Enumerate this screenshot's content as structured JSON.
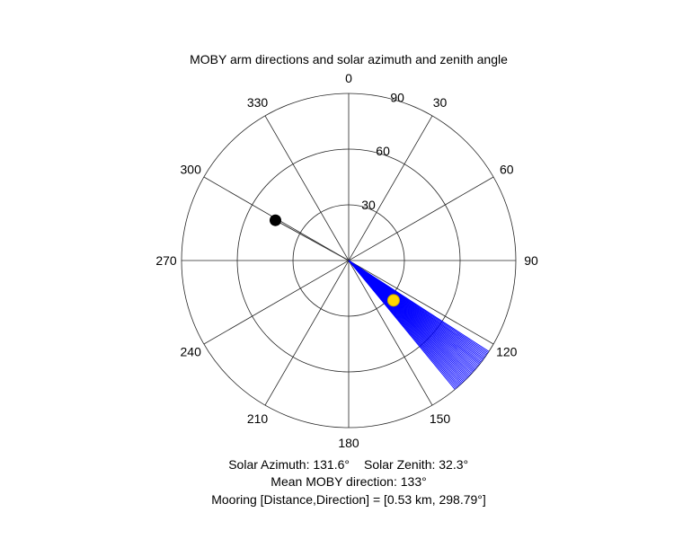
{
  "chart_data": {
    "type": "polar",
    "title": "MOBY arm directions and solar azimuth and zenith angle",
    "theta_zero": "top",
    "theta_direction": "clockwise",
    "theta_ticks": [
      "0",
      "30",
      "60",
      "90",
      "120",
      "150",
      "180",
      "210",
      "240",
      "270",
      "300",
      "330"
    ],
    "r_max": 90,
    "r_ticks": [
      "30",
      "60",
      "90"
    ],
    "arm_directions": [
      [
        123.0,
        90
      ],
      [
        123.5,
        90
      ],
      [
        124.0,
        90
      ],
      [
        124.5,
        90
      ],
      [
        125.0,
        90
      ],
      [
        125.5,
        90
      ],
      [
        126.0,
        90
      ],
      [
        126.5,
        90
      ],
      [
        127.0,
        90
      ],
      [
        127.5,
        90
      ],
      [
        128.0,
        90
      ],
      [
        128.5,
        90
      ],
      [
        129.0,
        90
      ],
      [
        129.5,
        90
      ],
      [
        130.0,
        90
      ],
      [
        130.5,
        90
      ],
      [
        131.0,
        90
      ],
      [
        131.5,
        90
      ],
      [
        132.0,
        90
      ],
      [
        132.5,
        90
      ],
      [
        133.0,
        90
      ],
      [
        133.5,
        90
      ],
      [
        134.0,
        90
      ],
      [
        134.5,
        90
      ],
      [
        135.0,
        90
      ],
      [
        135.5,
        90
      ],
      [
        136.0,
        90
      ],
      [
        136.5,
        90
      ],
      [
        137.0,
        90
      ],
      [
        137.5,
        90
      ],
      [
        138.0,
        90
      ],
      [
        138.5,
        90
      ],
      [
        139.0,
        90
      ],
      [
        139.5,
        90
      ],
      [
        140.0,
        90
      ],
      [
        140.5,
        90
      ]
    ],
    "sun": {
      "azimuth": 131.6,
      "zenith": 32.3
    },
    "mooring": {
      "direction": 298.79,
      "r": 45
    },
    "colors": {
      "arms": "#0000ff",
      "sun_fill": "#ffd700",
      "sun_stroke": "#c8a800",
      "mooring": "#000000",
      "grid": "#262626"
    }
  },
  "captions": {
    "line1a": "Solar Azimuth: 131.6°",
    "line1b": "Solar Zenith: 32.3°",
    "line2": "Mean MOBY direction: 133°",
    "line3": "Mooring [Distance,Direction] = [0.53 km, 298.79°]"
  }
}
